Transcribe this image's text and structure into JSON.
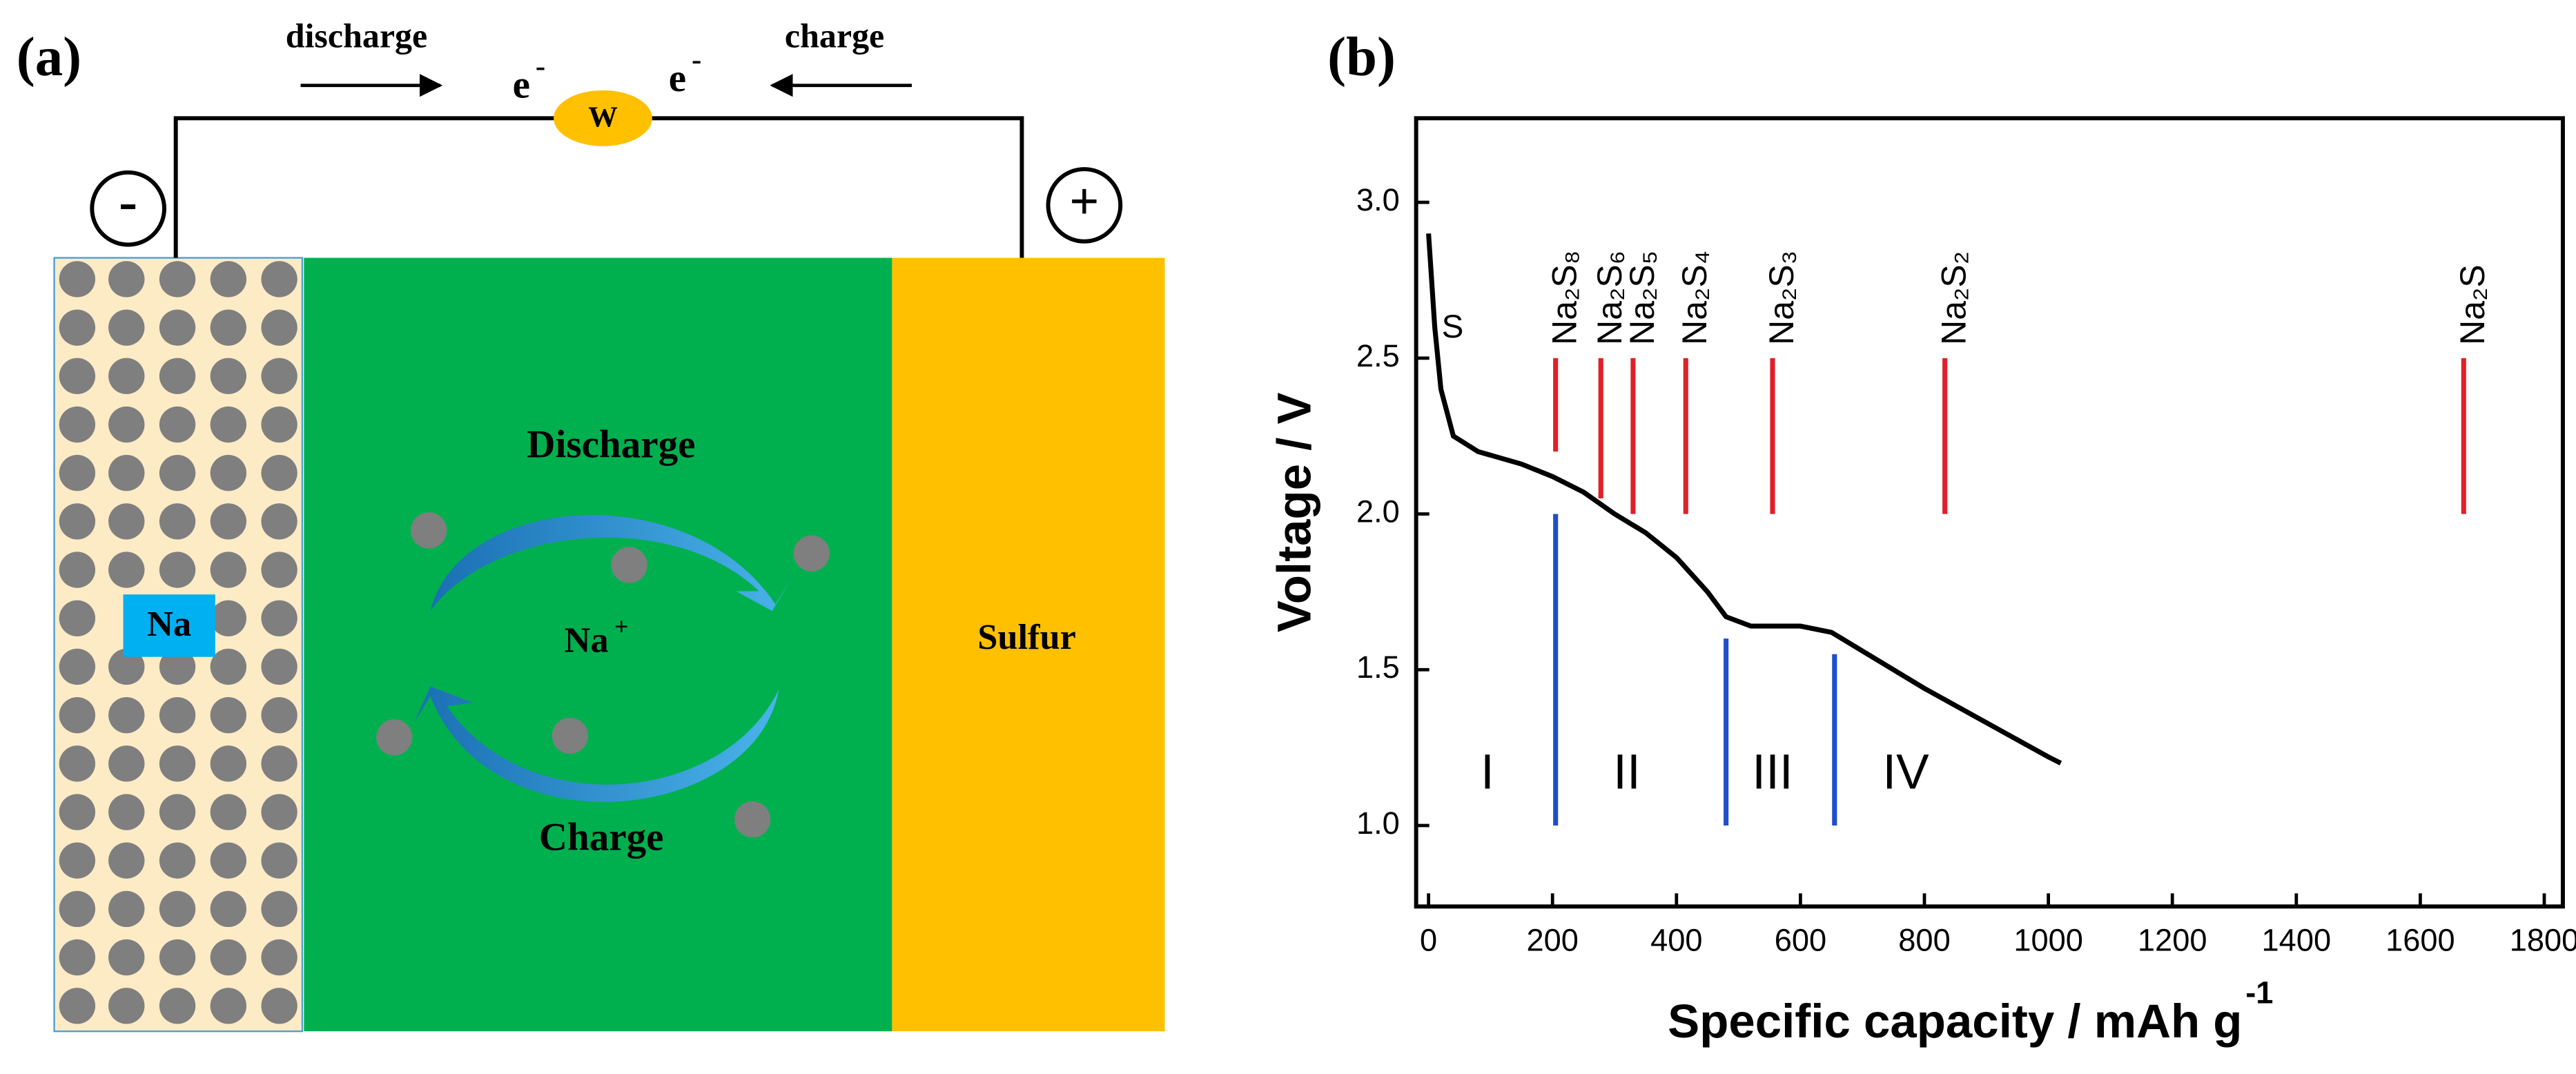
{
  "panel_a": {
    "label": "(a)",
    "discharge_arrow": "discharge",
    "charge_arrow": "charge",
    "electron": "e",
    "electron_sup": "-",
    "load": "W",
    "minus": "-",
    "plus": "+",
    "anode": "Na",
    "cathode": "Sulfur",
    "cycle_top": "Discharge",
    "cycle_bottom": "Charge",
    "ion": "Na",
    "ion_sup": "+"
  },
  "chart_data": {
    "type": "line",
    "label": "(b)",
    "xlabel": "Specific capacity / mAh g",
    "xlabel_sup": "-1",
    "ylabel": "Voltage / V",
    "xlim": [
      -20,
      1830
    ],
    "xticks": [
      0,
      200,
      400,
      600,
      800,
      1000,
      1200,
      1400,
      1600,
      1800
    ],
    "ylim": [
      0.74,
      3.27
    ],
    "yticks": [
      {
        "value": 1,
        "label": "1.0"
      },
      1.5,
      {
        "value": 2,
        "label": "2.0"
      },
      2.5,
      {
        "value": 3,
        "label": "3.0"
      }
    ],
    "color": "#000000",
    "x": [
      0,
      10,
      20,
      40,
      80,
      150,
      200,
      250,
      300,
      350,
      400,
      450,
      480,
      520,
      600,
      650,
      700,
      800,
      900,
      1000,
      1020
    ],
    "values": [
      2.9,
      2.6,
      2.4,
      2.25,
      2.2,
      2.16,
      2.12,
      2.07,
      2.0,
      1.94,
      1.86,
      1.75,
      1.67,
      1.64,
      1.64,
      1.62,
      1.56,
      1.44,
      1.33,
      1.22,
      1.2
    ],
    "start_label": "S",
    "species_color": "#e0202a",
    "species": [
      {
        "label": "Na₂S₈",
        "x": 205,
        "y_top": 2.5,
        "y_bottom": 2.2
      },
      {
        "label": "Na₂S₆",
        "x": 278,
        "y_top": 2.5,
        "y_bottom": 2.05
      },
      {
        "label": "Na₂S₅",
        "x": 330,
        "y_top": 2.5,
        "y_bottom": 2.0
      },
      {
        "label": "Na₂S₄",
        "x": 415,
        "y_top": 2.5,
        "y_bottom": 2.0
      },
      {
        "label": "Na₂S₃",
        "x": 555,
        "y_top": 2.5,
        "y_bottom": 2.0
      },
      {
        "label": "Na₂S₂",
        "x": 833,
        "y_top": 2.5,
        "y_bottom": 2.0
      },
      {
        "label": "Na₂S",
        "x": 1670,
        "y_top": 2.5,
        "y_bottom": 2.0
      }
    ],
    "boundary_color": "#1f4fc8",
    "boundaries": [
      {
        "x": 205,
        "y_top": 2.0,
        "y_bottom": 1.0
      },
      {
        "x": 480,
        "y_top": 1.6,
        "y_bottom": 1.0
      },
      {
        "x": 655,
        "y_top": 1.55,
        "y_bottom": 1.0
      }
    ],
    "regions": [
      "I",
      "II",
      "III",
      "IV"
    ]
  }
}
